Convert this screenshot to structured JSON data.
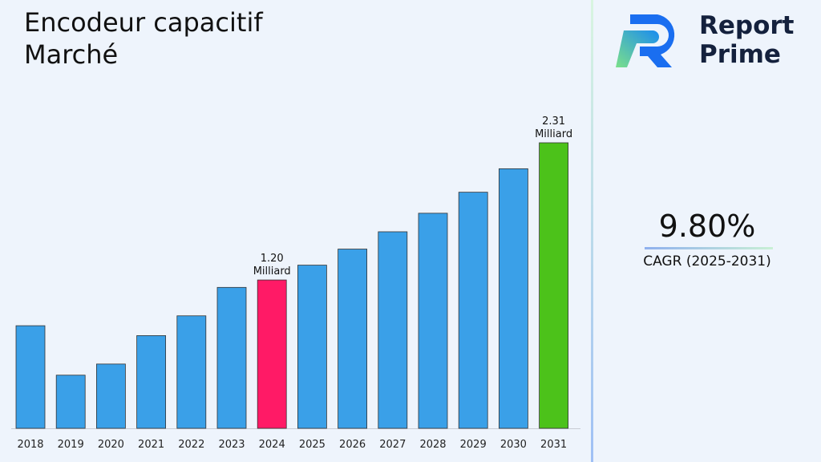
{
  "title_line1": "Encodeur capacitif",
  "title_line2": "Marché",
  "logo": {
    "line1": "Report",
    "line2": "Prime"
  },
  "cagr": {
    "value": "9.80%",
    "label": "CAGR (2025-2031)"
  },
  "colors": {
    "default": "#3aa0e8",
    "highlight_2024": "#ff1a66",
    "highlight_2031": "#4cc21a"
  },
  "chart_data": {
    "type": "bar",
    "categories": [
      "2018",
      "2019",
      "2020",
      "2021",
      "2022",
      "2023",
      "2024",
      "2025",
      "2026",
      "2027",
      "2028",
      "2029",
      "2030",
      "2031"
    ],
    "values": [
      0.83,
      0.43,
      0.52,
      0.75,
      0.91,
      1.14,
      1.2,
      1.32,
      1.45,
      1.59,
      1.74,
      1.91,
      2.1,
      2.31
    ],
    "data_labels": {
      "2024": [
        "1.20",
        "Milliard"
      ],
      "2031": [
        "2.31",
        "Milliard"
      ]
    },
    "ylim": [
      0,
      2.31
    ],
    "grid": false
  }
}
